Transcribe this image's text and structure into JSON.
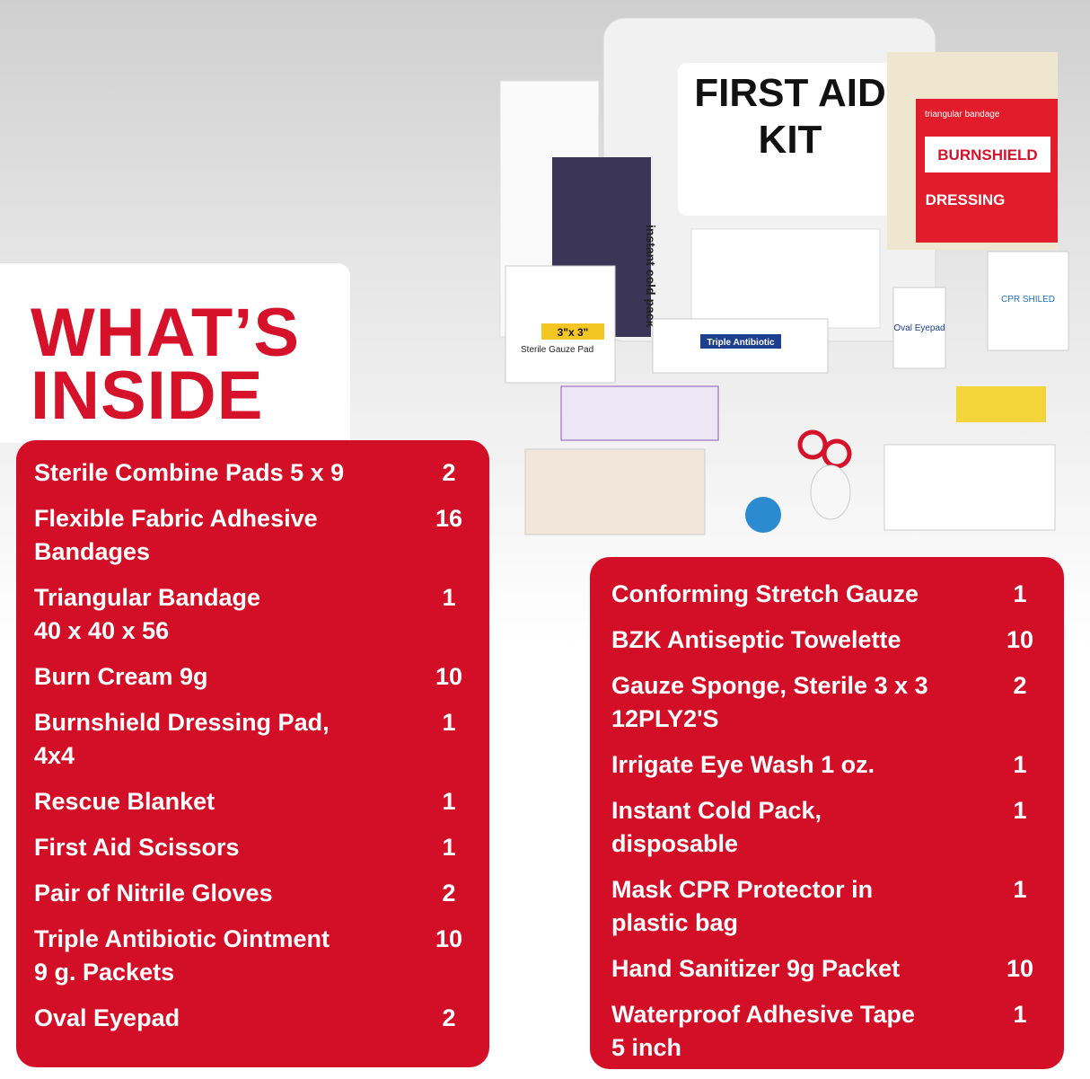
{
  "heading": {
    "lines": [
      "WHAT’S",
      "INSIDE"
    ]
  },
  "photo_labels": {
    "kit_title": [
      "FIRST AID",
      "KIT"
    ],
    "burnshield": "BURNSHIELD",
    "dressing": "DRESSING",
    "triangular": "triangular bandage",
    "cold_pack": "instant cold pack",
    "gauze_size": "3\"x 3\"",
    "gauze": "Sterile Gauze Pad",
    "antibiotic": "Triple Antibiotic",
    "eyepad": "Oval Eyepad",
    "cpr": "CPR SHILED"
  },
  "left_list": [
    {
      "name": [
        "Sterile Combine Pads 5 x 9"
      ],
      "qty": 2
    },
    {
      "name": [
        "Flexible Fabric Adhesive",
        "Bandages"
      ],
      "qty": 16
    },
    {
      "name": [
        "Triangular Bandage",
        "40 x 40 x 56"
      ],
      "qty": 1
    },
    {
      "name": [
        "Burn Cream 9g"
      ],
      "qty": 10
    },
    {
      "name": [
        "Burnshield Dressing Pad,",
        "4x4"
      ],
      "qty": 1
    },
    {
      "name": [
        "Rescue Blanket"
      ],
      "qty": 1
    },
    {
      "name": [
        "First Aid Scissors"
      ],
      "qty": 1
    },
    {
      "name": [
        "Pair of Nitrile Gloves"
      ],
      "qty": 2
    },
    {
      "name": [
        "Triple Antibiotic Ointment",
        "9 g. Packets"
      ],
      "qty": 10
    },
    {
      "name": [
        "Oval Eyepad"
      ],
      "qty": 2
    }
  ],
  "right_list": [
    {
      "name": [
        "Conforming Stretch Gauze"
      ],
      "qty": 1
    },
    {
      "name": [
        "BZK Antiseptic Towelette"
      ],
      "qty": 10
    },
    {
      "name": [
        "Gauze Sponge, Sterile 3 x 3",
        "12PLY2'S"
      ],
      "qty": 2
    },
    {
      "name": [
        "Irrigate Eye Wash 1 oz."
      ],
      "qty": 1
    },
    {
      "name": [
        "Instant Cold Pack,",
        "disposable"
      ],
      "qty": 1
    },
    {
      "name": [
        "Mask CPR Protector in",
        "plastic bag"
      ],
      "qty": 1
    },
    {
      "name": [
        "Hand Sanitizer 9g Packet"
      ],
      "qty": 10
    },
    {
      "name": [
        "Waterproof Adhesive Tape",
        "5 inch"
      ],
      "qty": 1
    }
  ]
}
